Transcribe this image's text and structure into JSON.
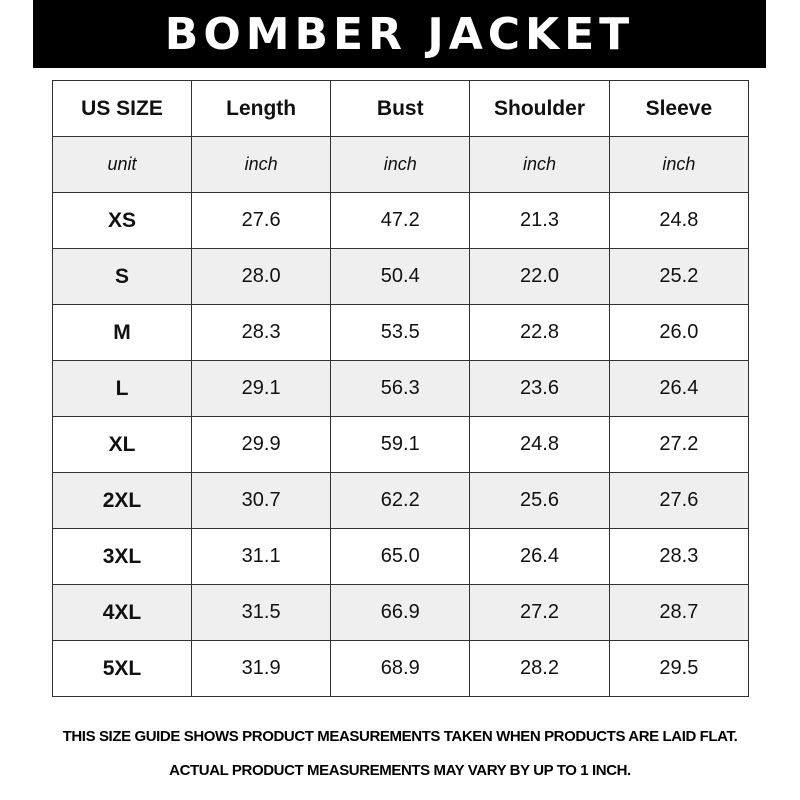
{
  "title": "BOMBER JACKET",
  "headers": [
    "US SIZE",
    "Length",
    "Bust",
    "Shoulder",
    "Sleeve"
  ],
  "units": [
    "unit",
    "inch",
    "inch",
    "inch",
    "inch"
  ],
  "rows": [
    [
      "XS",
      "27.6",
      "47.2",
      "21.3",
      "24.8"
    ],
    [
      "S",
      "28.0",
      "50.4",
      "22.0",
      "25.2"
    ],
    [
      "M",
      "28.3",
      "53.5",
      "22.8",
      "26.0"
    ],
    [
      "L",
      "29.1",
      "56.3",
      "23.6",
      "26.4"
    ],
    [
      "XL",
      "29.9",
      "59.1",
      "24.8",
      "27.2"
    ],
    [
      "2XL",
      "30.7",
      "62.2",
      "25.6",
      "27.6"
    ],
    [
      "3XL",
      "31.1",
      "65.0",
      "26.4",
      "28.3"
    ],
    [
      "4XL",
      "31.5",
      "66.9",
      "27.2",
      "28.7"
    ],
    [
      "5XL",
      "31.9",
      "68.9",
      "28.2",
      "29.5"
    ]
  ],
  "footer": {
    "line1": "THIS SIZE GUIDE SHOWS PRODUCT MEASUREMENTS TAKEN WHEN PRODUCTS ARE LAID FLAT.",
    "line2": "ACTUAL PRODUCT MEASUREMENTS MAY VARY BY UP TO 1 INCH."
  },
  "colors": {
    "banner": "#000000",
    "shaded_row": "#efefef",
    "border": "#333333"
  }
}
